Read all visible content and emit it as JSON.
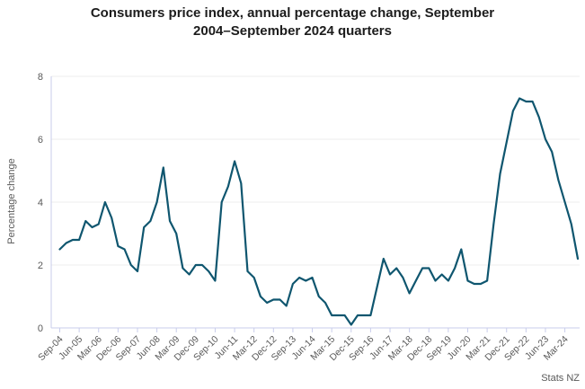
{
  "chart_data": {
    "type": "line",
    "title_line1": "Consumers price index, annual percentage change, September",
    "title_line2": "2004–September 2024 quarters",
    "ylabel": "Percentage change",
    "source": "Stats NZ",
    "ylim": [
      0,
      8
    ],
    "yticks": [
      0,
      2,
      4,
      6,
      8
    ],
    "grid": "horizontal",
    "legend": "none",
    "x_tick_labels": [
      "Sep-04",
      "Jun-05",
      "Mar-06",
      "Dec-06",
      "Sep-07",
      "Jun-08",
      "Mar-09",
      "Dec-09",
      "Sep-10",
      "Jun-11",
      "Mar-12",
      "Dec-12",
      "Sep-13",
      "Jun-14",
      "Mar-15",
      "Dec-15",
      "Sep-16",
      "Jun-17",
      "Mar-18",
      "Dec-18",
      "Sep-19",
      "Jun-20",
      "Mar-21",
      "Dec-21",
      "Sep-22",
      "Jun-23",
      "Mar-24"
    ],
    "x": [
      "Sep-04",
      "Dec-04",
      "Mar-05",
      "Jun-05",
      "Sep-05",
      "Dec-05",
      "Mar-06",
      "Jun-06",
      "Sep-06",
      "Dec-06",
      "Mar-07",
      "Jun-07",
      "Sep-07",
      "Dec-07",
      "Mar-08",
      "Jun-08",
      "Sep-08",
      "Dec-08",
      "Mar-09",
      "Jun-09",
      "Sep-09",
      "Dec-09",
      "Mar-10",
      "Jun-10",
      "Sep-10",
      "Dec-10",
      "Mar-11",
      "Jun-11",
      "Sep-11",
      "Dec-11",
      "Mar-12",
      "Jun-12",
      "Sep-12",
      "Dec-12",
      "Mar-13",
      "Jun-13",
      "Sep-13",
      "Dec-13",
      "Mar-14",
      "Jun-14",
      "Sep-14",
      "Dec-14",
      "Mar-15",
      "Jun-15",
      "Sep-15",
      "Dec-15",
      "Mar-16",
      "Jun-16",
      "Sep-16",
      "Dec-16",
      "Mar-17",
      "Jun-17",
      "Sep-17",
      "Dec-17",
      "Mar-18",
      "Jun-18",
      "Sep-18",
      "Dec-18",
      "Mar-19",
      "Jun-19",
      "Sep-19",
      "Dec-19",
      "Mar-20",
      "Jun-20",
      "Sep-20",
      "Dec-20",
      "Mar-21",
      "Jun-21",
      "Sep-21",
      "Dec-21",
      "Mar-22",
      "Jun-22",
      "Sep-22",
      "Dec-22",
      "Mar-23",
      "Jun-23",
      "Sep-23",
      "Dec-23",
      "Mar-24",
      "Jun-24",
      "Sep-24"
    ],
    "series": [
      {
        "name": "CPI annual percentage change",
        "values": [
          2.5,
          2.7,
          2.8,
          2.8,
          3.4,
          3.2,
          3.3,
          4.0,
          3.5,
          2.6,
          2.5,
          2.0,
          1.8,
          3.2,
          3.4,
          4.0,
          5.1,
          3.4,
          3.0,
          1.9,
          1.7,
          2.0,
          2.0,
          1.8,
          1.5,
          4.0,
          4.5,
          5.3,
          4.6,
          1.8,
          1.6,
          1.0,
          0.8,
          0.9,
          0.9,
          0.7,
          1.4,
          1.6,
          1.5,
          1.6,
          1.0,
          0.8,
          0.4,
          0.4,
          0.4,
          0.1,
          0.4,
          0.4,
          0.4,
          1.3,
          2.2,
          1.7,
          1.9,
          1.6,
          1.1,
          1.5,
          1.9,
          1.9,
          1.5,
          1.7,
          1.5,
          1.9,
          2.5,
          1.5,
          1.4,
          1.4,
          1.5,
          3.3,
          4.9,
          5.9,
          6.9,
          7.3,
          7.2,
          7.2,
          6.7,
          6.0,
          5.6,
          4.7,
          4.0,
          3.3,
          2.2
        ]
      }
    ],
    "colors": {
      "line": "#0f566f",
      "grid": "#ececec",
      "axis": "#c9cdeb",
      "tick_text": "#595959",
      "title_text": "#1c1c1c"
    }
  }
}
